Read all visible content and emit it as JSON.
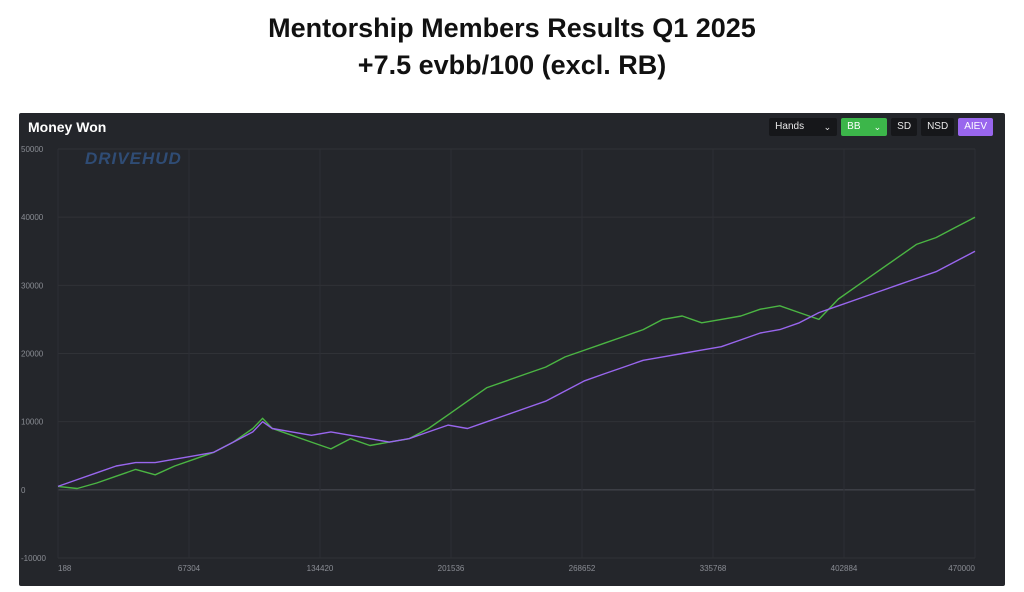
{
  "header": {
    "title_line1": "Mentorship Members Results Q1 2025",
    "title_line2": "+7.5 evbb/100 (excl. RB)"
  },
  "panel": {
    "title": "Money Won",
    "watermark": "DRIVEHUD",
    "controls": {
      "hands_label": "Hands",
      "bb_label": "BB",
      "sd_label": "SD",
      "nsd_label": "NSD",
      "aiev_label": "AIEV"
    }
  },
  "colors": {
    "background": "#24262b",
    "money_won_line": "#4bb543",
    "aiev_line": "#9966ee",
    "bb_button": "#3cb64a",
    "aiev_button": "#9966ee"
  },
  "chart_data": {
    "type": "line",
    "x_tick_labels": [
      "188",
      "67304",
      "134420",
      "201536",
      "268652",
      "335768",
      "402884",
      "470000"
    ],
    "y_ticks": [
      -10000,
      0,
      10000,
      20000,
      30000,
      40000,
      50000
    ],
    "xlim": [
      188,
      470000
    ],
    "ylim": [
      -10000,
      50000
    ],
    "grid": true,
    "series": [
      {
        "color": "#4bb543",
        "x": [
          188,
          10000,
          20000,
          30000,
          40000,
          50000,
          60000,
          70000,
          80000,
          90000,
          100000,
          105000,
          110000,
          120000,
          130000,
          140000,
          150000,
          160000,
          170000,
          180000,
          190000,
          200000,
          210000,
          220000,
          230000,
          240000,
          250000,
          260000,
          270000,
          280000,
          290000,
          300000,
          310000,
          320000,
          330000,
          340000,
          350000,
          360000,
          370000,
          380000,
          390000,
          400000,
          410000,
          420000,
          430000,
          440000,
          450000,
          460000,
          470000
        ],
        "y": [
          500,
          200,
          1000,
          2000,
          3000,
          2200,
          3500,
          4500,
          5500,
          7000,
          9000,
          10500,
          9000,
          8000,
          7000,
          6000,
          7500,
          6500,
          7000,
          7500,
          9000,
          11000,
          13000,
          15000,
          16000,
          17000,
          18000,
          19500,
          20500,
          21500,
          22500,
          23500,
          25000,
          25500,
          24500,
          25000,
          25500,
          26500,
          27000,
          26000,
          25000,
          28000,
          30000,
          32000,
          34000,
          36000,
          37000,
          38500,
          40000
        ]
      },
      {
        "color": "#9966ee",
        "x": [
          188,
          10000,
          20000,
          30000,
          40000,
          50000,
          60000,
          70000,
          80000,
          90000,
          100000,
          105000,
          110000,
          120000,
          130000,
          140000,
          150000,
          160000,
          170000,
          180000,
          190000,
          200000,
          210000,
          220000,
          230000,
          240000,
          250000,
          260000,
          270000,
          280000,
          290000,
          300000,
          310000,
          320000,
          330000,
          340000,
          350000,
          360000,
          370000,
          380000,
          390000,
          400000,
          410000,
          420000,
          430000,
          440000,
          450000,
          460000,
          470000
        ],
        "y": [
          500,
          1500,
          2500,
          3500,
          4000,
          4000,
          4500,
          5000,
          5500,
          7000,
          8500,
          10000,
          9000,
          8500,
          8000,
          8500,
          8000,
          7500,
          7000,
          7500,
          8500,
          9500,
          9000,
          10000,
          11000,
          12000,
          13000,
          14500,
          16000,
          17000,
          18000,
          19000,
          19500,
          20000,
          20500,
          21000,
          22000,
          23000,
          23500,
          24500,
          26000,
          27000,
          28000,
          29000,
          30000,
          31000,
          32000,
          33500,
          35000
        ]
      }
    ]
  }
}
